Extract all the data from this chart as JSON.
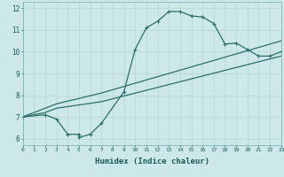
{
  "xlabel": "Humidex (Indice chaleur)",
  "bg_color": "#cce8e8",
  "grid_color": "#b8d8d8",
  "line_color": "#2d6e68",
  "line1_x": [
    0,
    2,
    3,
    4,
    5,
    5,
    6,
    7,
    9,
    10,
    11,
    12,
    13,
    14,
    15,
    16,
    17,
    18,
    19,
    20,
    21,
    22,
    23
  ],
  "line1_y": [
    7.0,
    7.1,
    6.9,
    6.2,
    6.2,
    6.05,
    6.2,
    6.7,
    8.15,
    10.1,
    11.1,
    11.4,
    11.85,
    11.85,
    11.65,
    11.6,
    11.3,
    10.35,
    10.4,
    10.1,
    9.8,
    9.8,
    10.0
  ],
  "line2_x": [
    0,
    2,
    3,
    7,
    23
  ],
  "line2_y": [
    7.0,
    7.4,
    7.6,
    8.1,
    10.5
  ],
  "line3_x": [
    0,
    2,
    3,
    7,
    23
  ],
  "line3_y": [
    7.0,
    7.2,
    7.4,
    7.7,
    9.8
  ],
  "xlim": [
    0,
    23
  ],
  "ylim": [
    5.7,
    12.3
  ],
  "xticks": [
    0,
    1,
    2,
    3,
    4,
    5,
    6,
    7,
    8,
    9,
    10,
    11,
    12,
    13,
    14,
    15,
    16,
    17,
    18,
    19,
    20,
    21,
    22,
    23
  ],
  "yticks": [
    6,
    7,
    8,
    9,
    10,
    11,
    12
  ]
}
